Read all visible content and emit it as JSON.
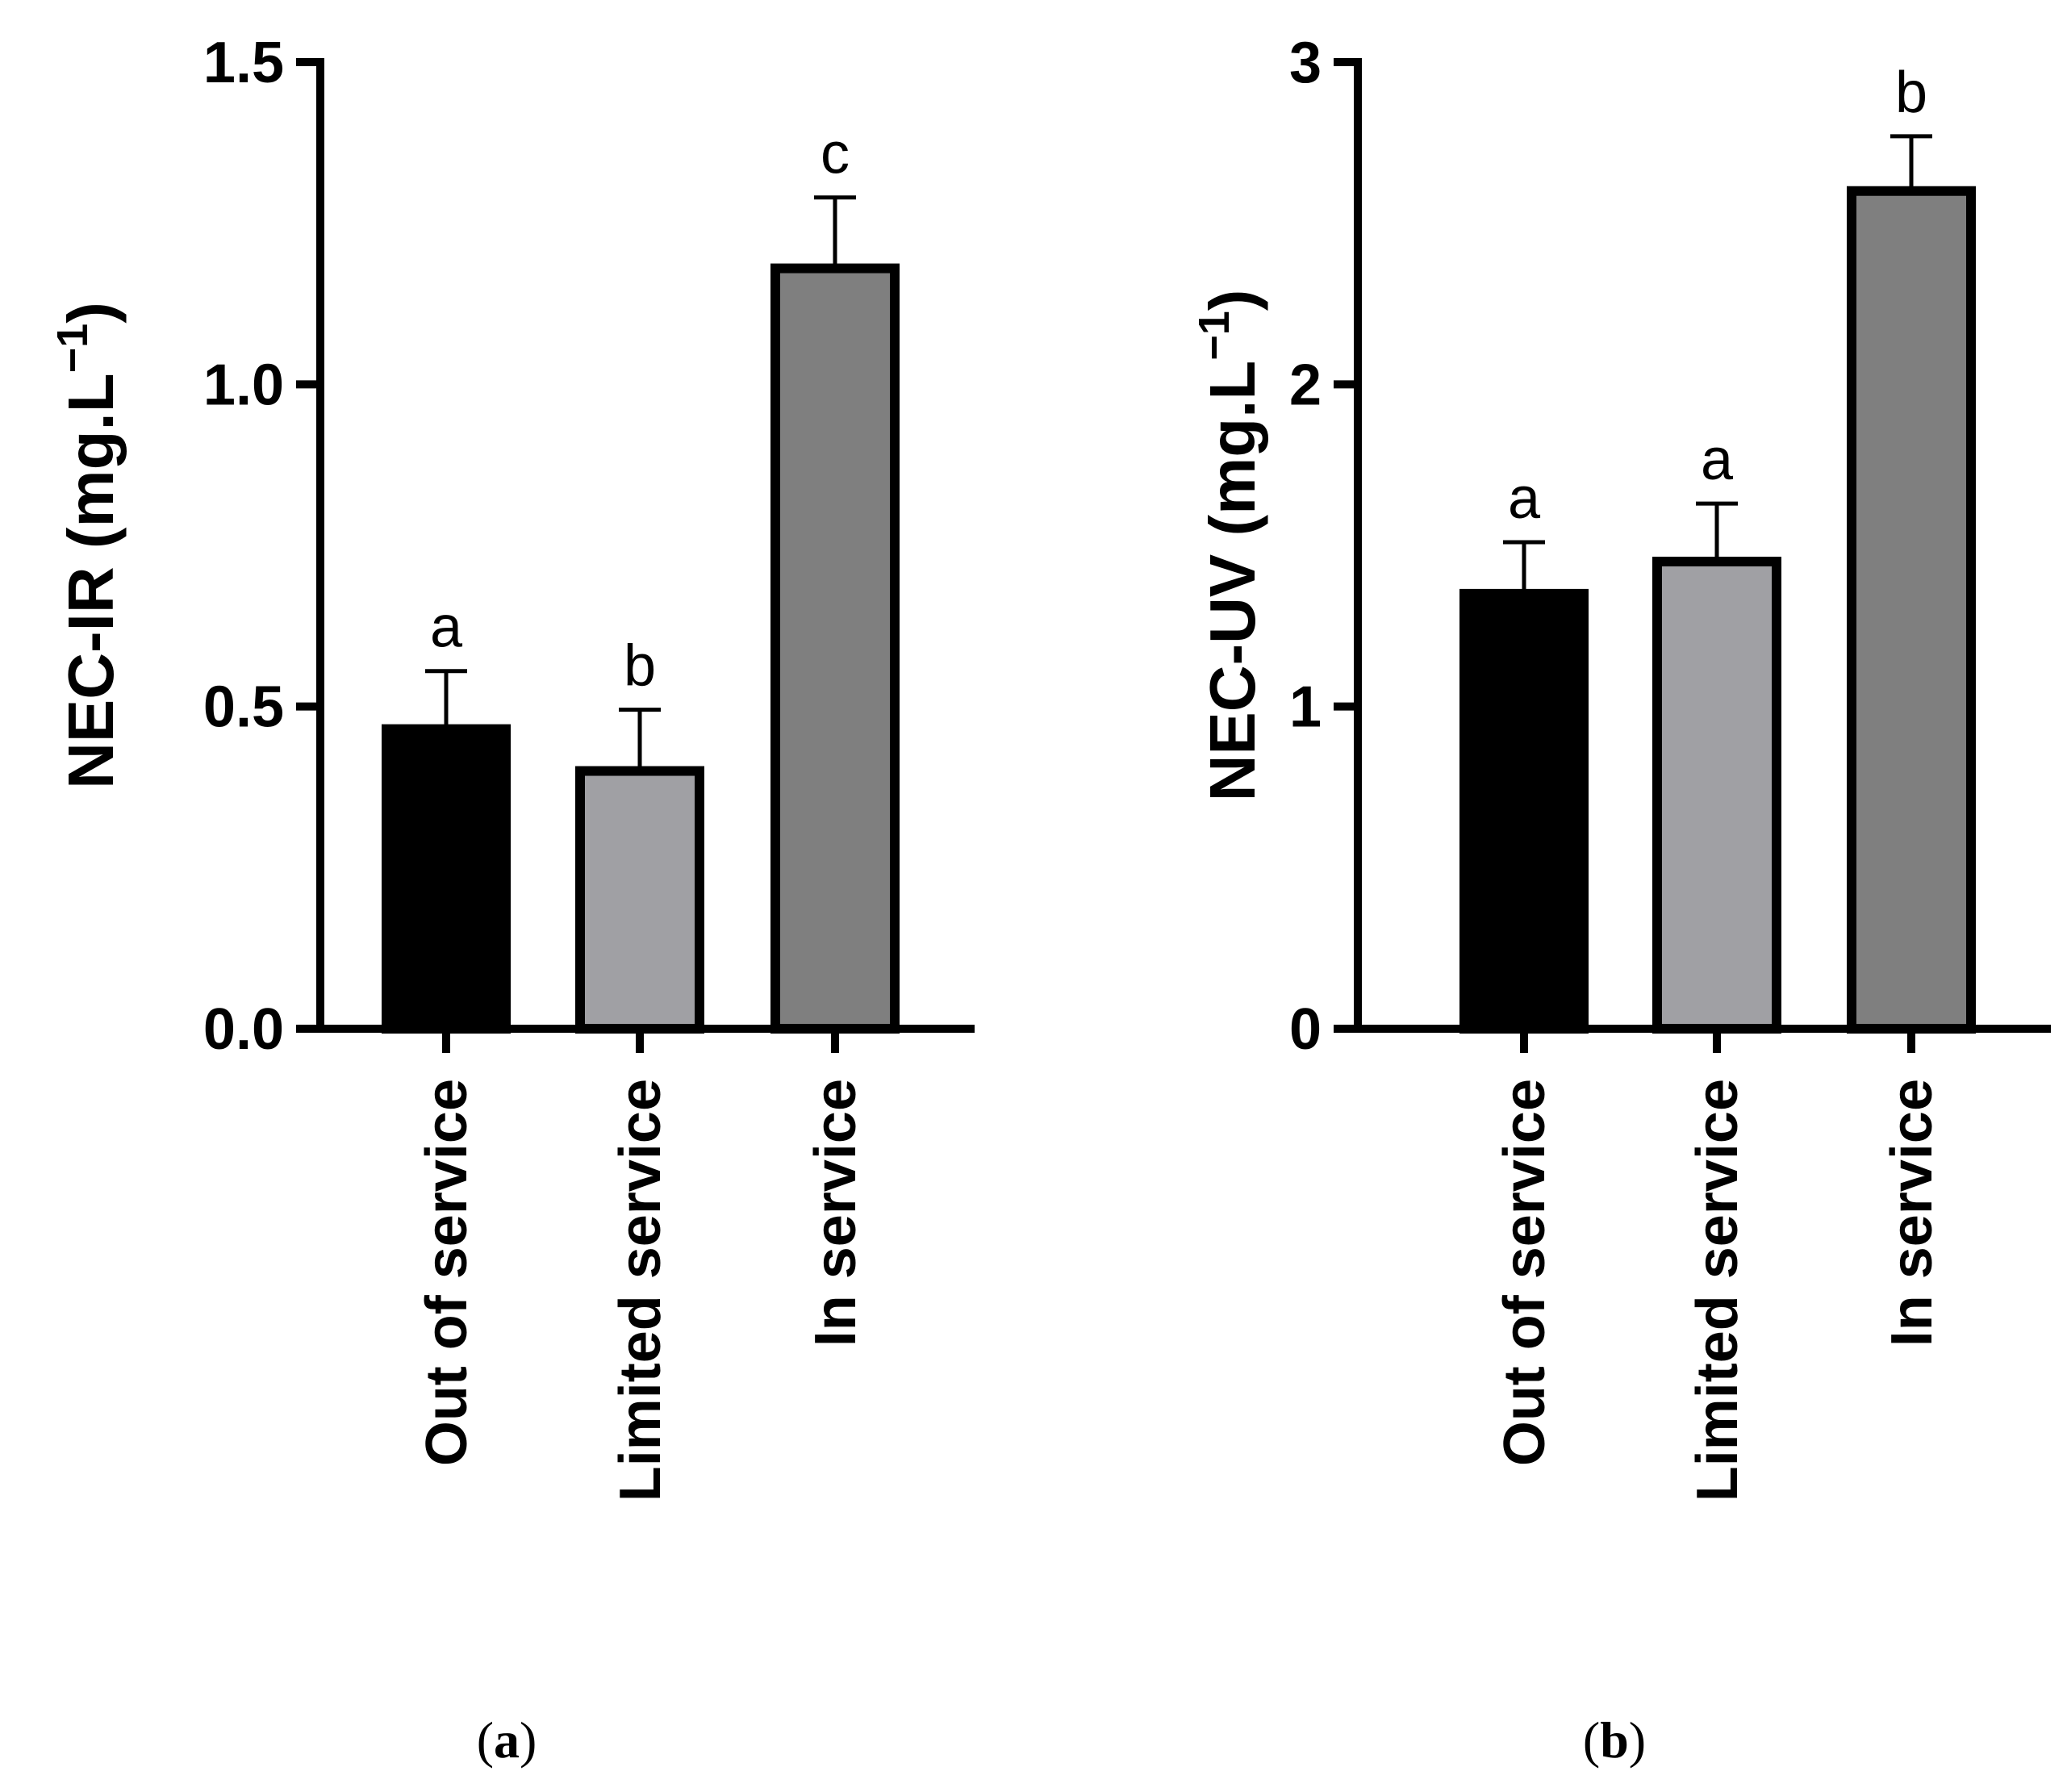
{
  "chart_data": [
    {
      "type": "bar",
      "panel_label": "(a)",
      "panel_letter": "a",
      "ylabel": "NEC-IR (mg.L",
      "ylabel_superscript": "−1",
      "ylabel_suffix": ")",
      "ylim": [
        0,
        1.5
      ],
      "yticks": [
        0.0,
        0.5,
        1.0,
        1.5
      ],
      "ytick_labels": [
        "0.0",
        "0.5",
        "1.0",
        "1.5"
      ],
      "categories": [
        "Out of service",
        "Limited service",
        "In service"
      ],
      "values": [
        0.465,
        0.4,
        1.18
      ],
      "errors": [
        0.09,
        0.095,
        0.11
      ],
      "significance": [
        "a",
        "b",
        "c"
      ],
      "bar_colors": [
        "#000000",
        "#a0a0a4",
        "#7f7f7f"
      ],
      "grid": false
    },
    {
      "type": "bar",
      "panel_label": "(b)",
      "panel_letter": "b",
      "ylabel": "NEC-UV (mg.L",
      "ylabel_superscript": "−1",
      "ylabel_suffix": ")",
      "ylim": [
        0,
        3
      ],
      "yticks": [
        0,
        1,
        2,
        3
      ],
      "ytick_labels": [
        "0",
        "1",
        "2",
        "3"
      ],
      "categories": [
        "Out of service",
        "Limited service",
        "In service"
      ],
      "values": [
        1.35,
        1.45,
        2.6
      ],
      "errors": [
        0.16,
        0.18,
        0.17
      ],
      "significance": [
        "a",
        "a",
        "b"
      ],
      "bar_colors": [
        "#000000",
        "#a0a0a4",
        "#7f7f7f"
      ],
      "grid": false
    }
  ]
}
